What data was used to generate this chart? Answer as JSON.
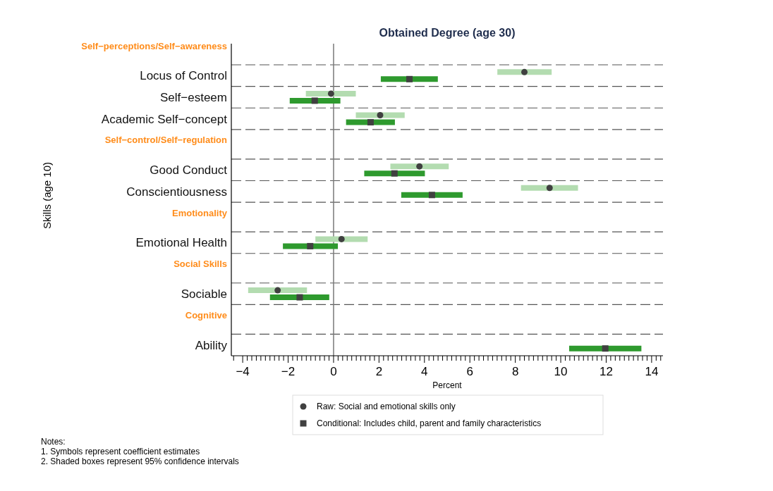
{
  "chart_data": {
    "type": "scatter",
    "orientation": "horizontal",
    "title": "Obtained Degree (age 30)",
    "xlabel": "Percent",
    "ylabel": "Skills (age 10)",
    "categories": [
      "Self−perceptions/Self−awareness",
      "Locus of Control",
      "Self−esteem",
      "Academic Self−concept",
      "Self−control/Self−regulation",
      "Good Conduct",
      "Conscientiousness",
      "Emotionality",
      "Emotional Health",
      "Social Skills",
      "Sociable",
      "Cognitive",
      "Ability"
    ],
    "series": [
      {
        "name": "Raw: Social and emotional skills only",
        "color": "#404040",
        "marker": "circle",
        "values": [
          null,
          8.4,
          -0.11,
          2.05,
          null,
          3.78,
          9.51,
          null,
          0.35,
          null,
          -2.46,
          null,
          null
        ],
        "errors": [
          null,
          [
            7.21,
            9.6
          ],
          [
            -1.22,
            0.98
          ],
          [
            0.98,
            3.13
          ],
          null,
          [
            2.5,
            5.07
          ],
          [
            8.25,
            10.76
          ],
          null,
          [
            -0.8,
            1.5
          ],
          null,
          [
            -3.76,
            -1.17
          ],
          null,
          null
        ]
      },
      {
        "name": "Conditional: Includes child, parent and family characteristics",
        "color": "#404040",
        "marker": "square",
        "values": [
          null,
          3.34,
          -0.83,
          1.63,
          null,
          2.68,
          4.33,
          null,
          -1.03,
          null,
          -1.49,
          null,
          11.96
        ],
        "errors": [
          null,
          [
            2.08,
            4.59
          ],
          [
            -1.93,
            0.3
          ],
          [
            0.55,
            2.7
          ],
          null,
          [
            1.35,
            4.02
          ],
          [
            2.98,
            5.68
          ],
          null,
          [
            -2.23,
            0.19
          ],
          null,
          [
            -2.8,
            -0.19
          ],
          null,
          [
            10.37,
            13.55
          ]
        ]
      }
    ],
    "xlim": [
      -4.5,
      14.5
    ],
    "xticks": [
      {
        "value": -4.4,
        "label": null
      },
      {
        "value": -4,
        "label": "−4"
      },
      {
        "value": -3.8,
        "label": null
      },
      {
        "value": -3.6,
        "label": null
      },
      {
        "value": -3.4,
        "label": null
      },
      {
        "value": -3.2,
        "label": null
      },
      {
        "value": -3,
        "label": null
      },
      {
        "value": -2.8,
        "label": null
      },
      {
        "value": -2.6,
        "label": null
      },
      {
        "value": -2.4,
        "label": null
      },
      {
        "value": -2.2,
        "label": null
      },
      {
        "value": -2,
        "label": "−2"
      },
      {
        "value": -1.8,
        "label": null
      },
      {
        "value": -1.6,
        "label": null
      },
      {
        "value": -1.4,
        "label": null
      },
      {
        "value": -1.2,
        "label": null
      },
      {
        "value": -1,
        "label": null
      },
      {
        "value": -0.8,
        "label": null
      },
      {
        "value": -0.6,
        "label": null
      },
      {
        "value": -0.4,
        "label": null
      },
      {
        "value": -0.2,
        "label": null
      },
      0,
      {
        "value": 0.2,
        "label": null
      },
      {
        "value": 0.4,
        "label": null
      },
      {
        "value": 0.6,
        "label": null
      },
      {
        "value": 0.8,
        "label": null
      },
      {
        "value": 1,
        "label": null
      },
      {
        "value": 1.2,
        "label": null
      },
      {
        "value": 1.4,
        "label": null
      },
      {
        "value": 1.6,
        "label": null
      },
      {
        "value": 1.8,
        "label": null
      },
      2,
      {
        "value": 2.2,
        "label": null
      },
      {
        "value": 2.4,
        "label": null
      },
      {
        "value": 2.6,
        "label": null
      },
      {
        "value": 2.8,
        "label": null
      },
      {
        "value": 3,
        "label": null
      },
      {
        "value": 3.2,
        "label": null
      },
      {
        "value": 3.4,
        "label": null
      },
      {
        "value": 3.6,
        "label": null
      },
      {
        "value": 3.8,
        "label": null
      },
      4,
      {
        "value": 4.2,
        "label": null
      },
      {
        "value": 4.4,
        "label": null
      },
      {
        "value": 4.6,
        "label": null
      },
      {
        "value": 4.8,
        "label": null
      },
      {
        "value": 5,
        "label": null
      },
      {
        "value": 5.2,
        "label": null
      },
      {
        "value": 5.4,
        "label": null
      },
      {
        "value": 5.6,
        "label": null
      },
      {
        "value": 5.8,
        "label": null
      },
      6,
      {
        "value": 6.2,
        "label": null
      },
      {
        "value": 6.4,
        "label": null
      },
      {
        "value": 6.6,
        "label": null
      },
      {
        "value": 6.8,
        "label": null
      },
      {
        "value": 7,
        "label": null
      },
      {
        "value": 7.2,
        "label": null
      },
      {
        "value": 7.4,
        "label": null
      },
      {
        "value": 7.6,
        "label": null
      },
      {
        "value": 7.8,
        "label": null
      },
      8,
      {
        "value": 8.2,
        "label": null
      },
      {
        "value": 8.4,
        "label": null
      },
      {
        "value": 8.6,
        "label": null
      },
      {
        "value": 8.8,
        "label": null
      },
      {
        "value": 9,
        "label": null
      },
      {
        "value": 9.2,
        "label": null
      },
      {
        "value": 9.4,
        "label": null
      },
      {
        "value": 9.6,
        "label": null
      },
      {
        "value": 9.8,
        "label": null
      },
      10,
      {
        "value": 10.2,
        "label": null
      },
      {
        "value": 10.4,
        "label": null
      },
      {
        "value": 10.6,
        "label": null
      },
      {
        "value": 10.8,
        "label": null
      },
      {
        "value": 11,
        "label": null
      },
      {
        "value": 11.2,
        "label": null
      },
      {
        "value": 11.4,
        "label": null
      },
      {
        "value": 11.6,
        "label": null
      },
      {
        "value": 11.8,
        "label": null
      },
      12,
      {
        "value": 12.2,
        "label": null
      },
      {
        "value": 12.4,
        "label": null
      },
      {
        "value": 12.6,
        "label": null
      },
      {
        "value": 12.8,
        "label": null
      },
      {
        "value": 13,
        "label": null
      },
      {
        "value": 13.2,
        "label": null
      },
      {
        "value": 13.4,
        "label": null
      },
      {
        "value": 13.6,
        "label": null
      },
      {
        "value": 13.8,
        "label": null
      },
      14,
      {
        "value": 14.2,
        "label": null
      },
      {
        "value": 14.4,
        "label": null
      }
    ],
    "ref_lines": [
      {
        "axis": "x",
        "value": 0,
        "color": "#7a7a7a"
      }
    ],
    "grid": "y",
    "legend": "bottom",
    "annotations": [
      "Notes:",
      "1. Symbols represent coefficient estimates",
      "2. Shaded boxes represent 95% confidence intervals"
    ]
  }
}
